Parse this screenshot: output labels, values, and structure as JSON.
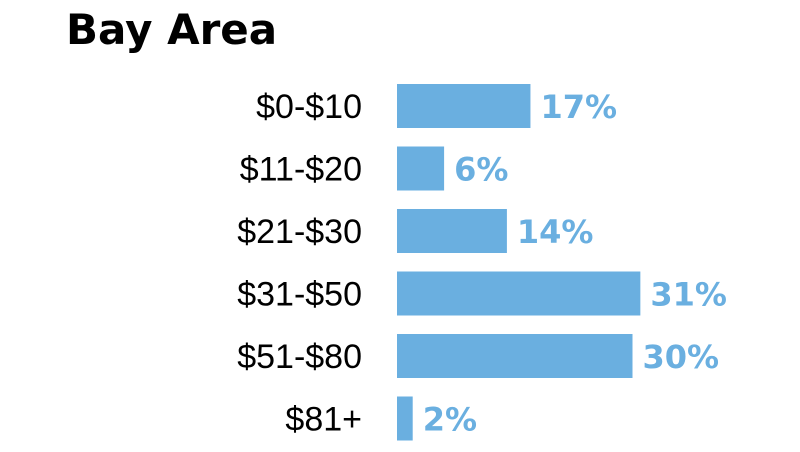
{
  "colors": {
    "bar": "#6aafe0",
    "value_label": "#6aafe0",
    "category_label": "#000000",
    "title": "#000000"
  },
  "chart_data": {
    "type": "bar",
    "orientation": "horizontal",
    "title": "Bay Area",
    "xlabel": "",
    "ylabel": "",
    "categories": [
      "$0-$10",
      "$11-$20",
      "$21-$30",
      "$31-$50",
      "$51-$80",
      "$81+"
    ],
    "values": [
      17,
      6,
      14,
      31,
      30,
      2
    ],
    "value_labels": [
      "17%",
      "6%",
      "14%",
      "31%",
      "30%",
      "2%"
    ],
    "unit": "%",
    "grid": false,
    "legend": "none"
  }
}
